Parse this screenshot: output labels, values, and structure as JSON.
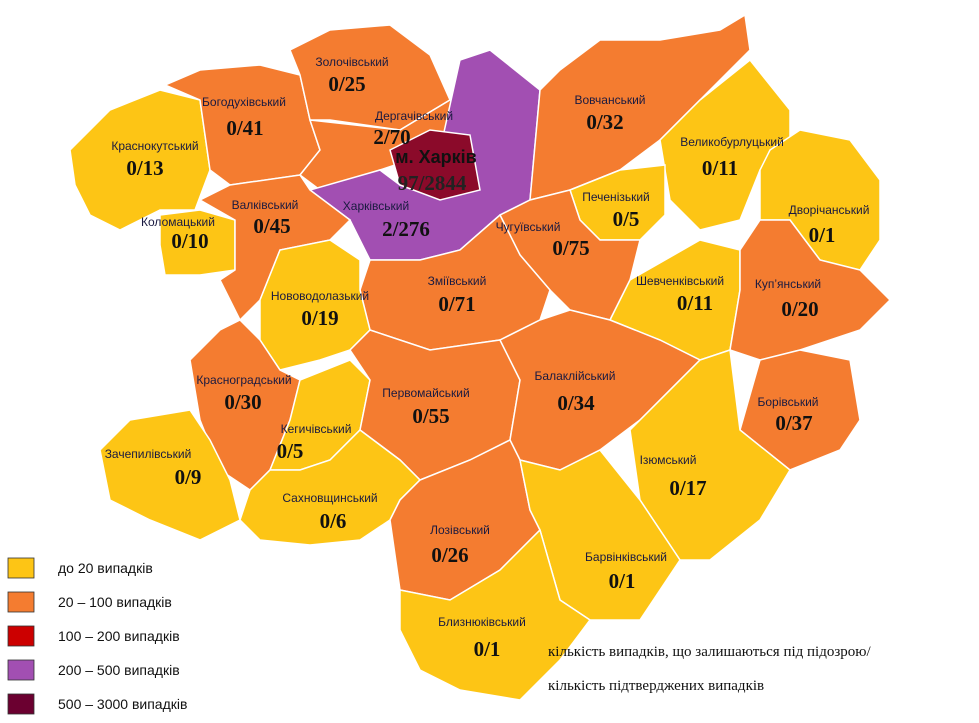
{
  "map": {
    "regions": [
      {
        "name": "Краснокутський",
        "value": "0/13",
        "color": "#fdc515"
      },
      {
        "name": "Коломацький",
        "value": "0/10",
        "color": "#fdc515"
      },
      {
        "name": "Богодухівський",
        "value": "0/41",
        "color": "#f47c30"
      },
      {
        "name": "Золочівський",
        "value": "0/25",
        "color": "#f47c30"
      },
      {
        "name": "Дергачівський",
        "value": "2/70",
        "color": "#f47c30"
      },
      {
        "name": "Харківський",
        "value": "2/276",
        "color": "#a24fb2"
      },
      {
        "name": "м. Харків",
        "value": "97/2844",
        "color": "#8b0a2a"
      },
      {
        "name": "Вовчанський",
        "value": "0/32",
        "color": "#f47c30"
      },
      {
        "name": "Великобурлуцький",
        "value": "0/11",
        "color": "#fdc515"
      },
      {
        "name": "Дворічанський",
        "value": "0/1",
        "color": "#fdc515"
      },
      {
        "name": "Печенізький",
        "value": "0/5",
        "color": "#fdc515"
      },
      {
        "name": "Чугуївський",
        "value": "0/75",
        "color": "#f47c30"
      },
      {
        "name": "Валківський",
        "value": "0/45",
        "color": "#f47c30"
      },
      {
        "name": "Зміївський",
        "value": "0/71",
        "color": "#f47c30"
      },
      {
        "name": "Нововодолазький",
        "value": "0/19",
        "color": "#fdc515"
      },
      {
        "name": "Шевченківський",
        "value": "0/11",
        "color": "#fdc515"
      },
      {
        "name": "Куп’янський",
        "value": "0/20",
        "color": "#f47c30"
      },
      {
        "name": "Борівський",
        "value": "0/37",
        "color": "#f47c30"
      },
      {
        "name": "Красноградський",
        "value": "0/30",
        "color": "#f47c30"
      },
      {
        "name": "Кегичівський",
        "value": "0/5",
        "color": "#fdc515"
      },
      {
        "name": "Первомайський",
        "value": "0/55",
        "color": "#f47c30"
      },
      {
        "name": "Балаклійський",
        "value": "0/34",
        "color": "#f47c30"
      },
      {
        "name": "Ізюмський",
        "value": "0/17",
        "color": "#fdc515"
      },
      {
        "name": "Зачепилівський",
        "value": "0/9",
        "color": "#fdc515"
      },
      {
        "name": "Сахновщинський",
        "value": "0/6",
        "color": "#fdc515"
      },
      {
        "name": "Лозівський",
        "value": "0/26",
        "color": "#f47c30"
      },
      {
        "name": "Барвінківський",
        "value": "0/1",
        "color": "#fdc515"
      },
      {
        "name": "Близнюківський",
        "value": "0/1",
        "color": "#fdc515"
      }
    ],
    "legend": [
      {
        "label": "до 20  випадків",
        "color": "#fdc515"
      },
      {
        "label": "20 – 100  випадків",
        "color": "#f47c30"
      },
      {
        "label": "100 – 200  випадків",
        "color": "#cc0000"
      },
      {
        "label": "200 – 500  випадків",
        "color": "#a24fb2"
      },
      {
        "label": "500 – 3000  випадків",
        "color": "#6b0030"
      }
    ],
    "note": [
      "кількість випадків, що залишаються під підозрою/",
      "кількість підтверджених випадків"
    ]
  }
}
